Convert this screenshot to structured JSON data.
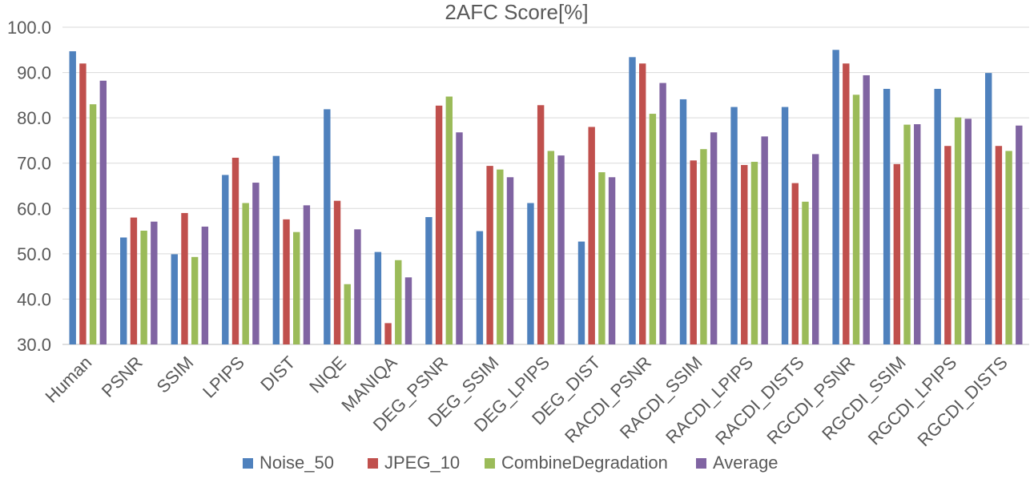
{
  "chart_data": {
    "type": "bar",
    "title": "2AFC Score[%]",
    "xlabel": "",
    "ylabel": "",
    "ylim": [
      30,
      100
    ],
    "yticks": [
      30,
      40,
      50,
      60,
      70,
      80,
      90,
      100
    ],
    "ytick_labels": [
      "30.0",
      "40.0",
      "50.0",
      "60.0",
      "70.0",
      "80.0",
      "90.0",
      "100.0"
    ],
    "grid": true,
    "legend_position": "bottom",
    "categories": [
      "Human",
      "PSNR",
      "SSIM",
      "LPIPS",
      "DIST",
      "NIQE",
      "MANIQA",
      "DEG_PSNR",
      "DEG_SSIM",
      "DEG_LPIPS",
      "DEG_DIST",
      "RACDI_PSNR",
      "RACDI_SSIM",
      "RACDI_LPIPS",
      "RACDI_DISTS",
      "RGCDI_PSNR",
      "RGCDI_SSIM",
      "RGCDI_LPIPS",
      "RGCDI_DISTS"
    ],
    "series": [
      {
        "name": "Noise_50",
        "color": "#4f81bd",
        "values": [
          94.7,
          53.6,
          49.9,
          67.4,
          71.6,
          81.9,
          50.4,
          58.1,
          55.0,
          61.2,
          52.7,
          93.4,
          84.1,
          82.4,
          82.4,
          95.0,
          86.4,
          86.4,
          89.9
        ]
      },
      {
        "name": "JPEG_10",
        "color": "#c0504d",
        "values": [
          92.0,
          58.0,
          59.0,
          71.2,
          57.6,
          61.7,
          34.7,
          82.7,
          69.4,
          82.8,
          78.0,
          92.0,
          70.6,
          69.6,
          65.6,
          92.0,
          69.8,
          73.8,
          73.8
        ]
      },
      {
        "name": "CombineDegradation",
        "color": "#9bbb59",
        "values": [
          83.0,
          55.1,
          49.3,
          61.2,
          54.8,
          43.3,
          48.6,
          84.7,
          68.6,
          72.7,
          68.0,
          80.9,
          73.1,
          70.3,
          61.5,
          85.1,
          78.5,
          80.1,
          72.7
        ]
      },
      {
        "name": "Average",
        "color": "#8064a2",
        "values": [
          88.2,
          57.1,
          56.0,
          65.7,
          60.7,
          55.4,
          44.8,
          76.8,
          66.9,
          71.7,
          66.9,
          87.7,
          76.8,
          75.9,
          72.0,
          89.4,
          78.6,
          79.8,
          78.3
        ]
      }
    ]
  }
}
